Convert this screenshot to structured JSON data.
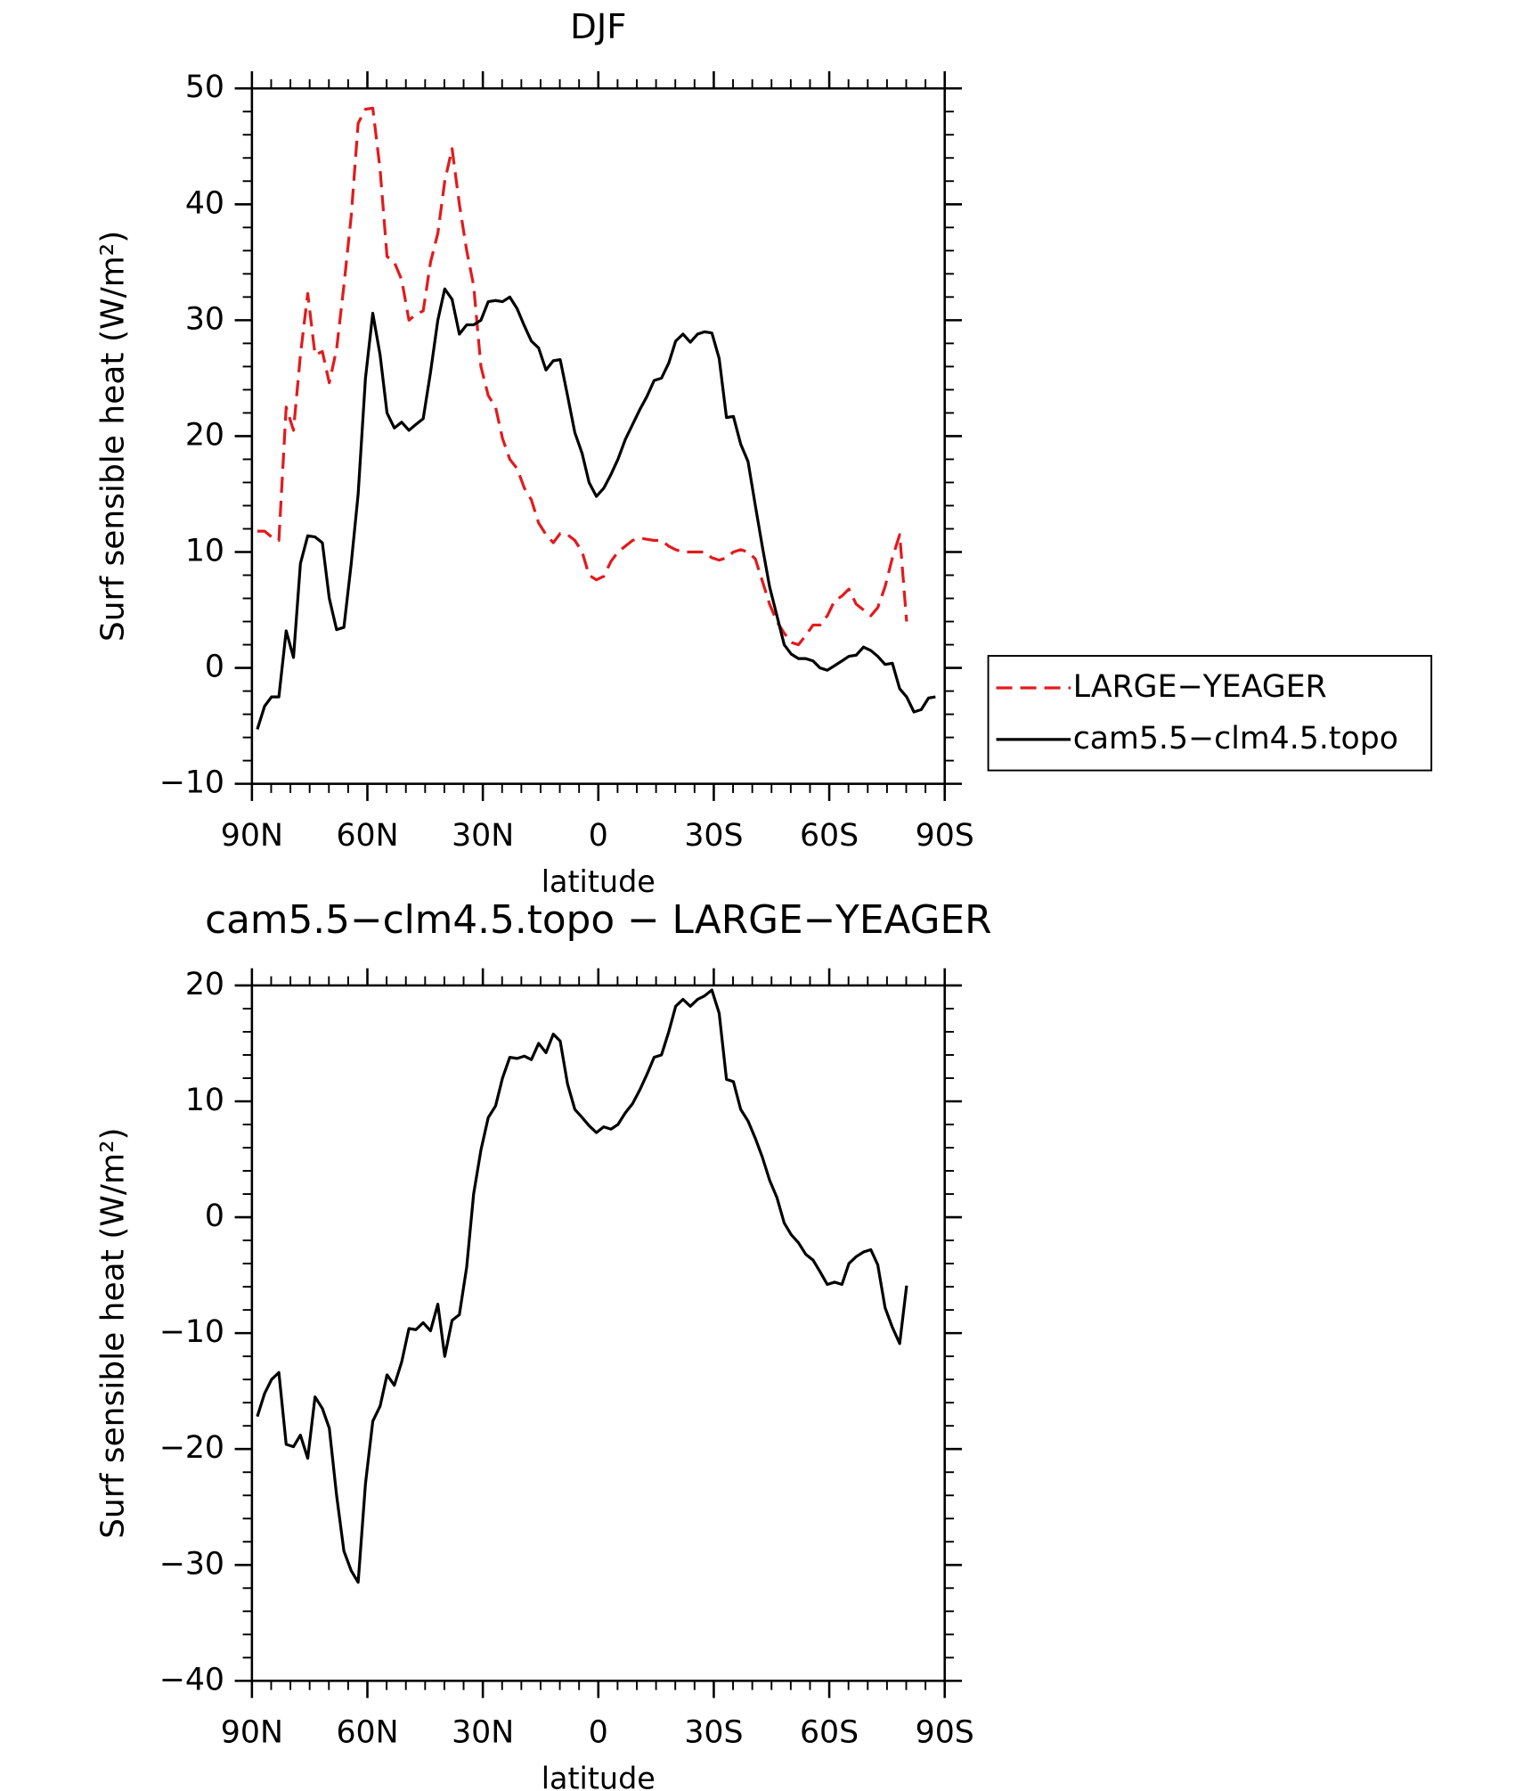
{
  "chart_data": [
    {
      "type": "line",
      "title": "DJF",
      "xlabel": "latitude",
      "ylabel": "Surf sensible heat (W/m²)",
      "x": [
        88.6,
        86.7,
        84.9,
        83.0,
        81.1,
        79.2,
        77.4,
        75.5,
        73.6,
        71.7,
        69.9,
        68.0,
        66.1,
        64.2,
        62.4,
        60.5,
        58.6,
        56.7,
        54.9,
        53.0,
        51.1,
        49.2,
        47.4,
        45.5,
        43.6,
        41.7,
        39.9,
        38.0,
        36.1,
        34.2,
        32.4,
        30.5,
        28.6,
        26.7,
        24.9,
        23.0,
        21.1,
        19.2,
        17.4,
        15.5,
        13.6,
        11.7,
        9.9,
        8.0,
        6.1,
        4.2,
        2.4,
        0.5,
        -1.4,
        -3.3,
        -5.1,
        -7.0,
        -8.9,
        -10.8,
        -12.6,
        -14.5,
        -16.4,
        -18.3,
        -20.1,
        -22.0,
        -23.9,
        -25.8,
        -27.6,
        -29.5,
        -31.4,
        -33.3,
        -35.1,
        -37.0,
        -38.9,
        -40.8,
        -42.6,
        -44.5,
        -46.4,
        -48.3,
        -50.1,
        -52.0,
        -53.9,
        -55.8,
        -57.6,
        -59.5,
        -61.4,
        -63.3,
        -65.1,
        -67.0,
        -68.9,
        -70.8,
        -72.6,
        -74.5,
        -76.4,
        -78.3,
        -80.1,
        -82.0,
        -83.9,
        -85.8,
        -87.6
      ],
      "series": [
        {
          "name": "LARGE−YEAGER",
          "color": "#e31a1c",
          "dash": true,
          "values": [
            11.8,
            11.8,
            11.3,
            11,
            22.5,
            20.5,
            27,
            32.3,
            27,
            27.3,
            24.6,
            27.5,
            33,
            39,
            47,
            48.2,
            48.3,
            43,
            35.5,
            35,
            33.5,
            30,
            30.5,
            30.8,
            35,
            37.5,
            42,
            44.8,
            40,
            36,
            33,
            26,
            23.5,
            22.5,
            19.8,
            18,
            17.2,
            15.5,
            14.5,
            12.5,
            11.5,
            10.8,
            11.6,
            11.5,
            11,
            10,
            8,
            7.6,
            7.9,
            9.2,
            10,
            10.5,
            11,
            11.2,
            11.1,
            11,
            11,
            10.5,
            10.2,
            10,
            10,
            10,
            10,
            9.5,
            9.3,
            9.5,
            10,
            10.2,
            10,
            9.4,
            7.5,
            5.5,
            4,
            3,
            2.2,
            2,
            2.8,
            3.7,
            3.7,
            4.5,
            5.8,
            6.2,
            6.8,
            5.5,
            5,
            4.5,
            5.2,
            7,
            9.5,
            11.5,
            4,
            null,
            null,
            null,
            null
          ]
        },
        {
          "name": "cam5.5−clm4.5.topo",
          "color": "#000000",
          "dash": false,
          "values": [
            -5.3,
            -3.3,
            -2.5,
            -2.5,
            3.2,
            0.9,
            9,
            11.4,
            11.3,
            10.8,
            6,
            3.3,
            3.5,
            9,
            15,
            25,
            30.6,
            27,
            22,
            20.7,
            21.2,
            20.5,
            21,
            21.5,
            25.5,
            30,
            32.7,
            31.8,
            28.8,
            29.6,
            29.6,
            30,
            31.6,
            31.7,
            31.6,
            32,
            31,
            29.5,
            28.2,
            27.6,
            25.7,
            26.5,
            26.6,
            23.5,
            20.3,
            18.5,
            16,
            14.8,
            15.5,
            16.7,
            18,
            19.7,
            21,
            22.3,
            23.4,
            24.8,
            25,
            26.3,
            28.2,
            28.8,
            28.1,
            28.8,
            29,
            28.9,
            26.7,
            21.6,
            21.7,
            19.3,
            17.8,
            14,
            10.5,
            7,
            4.5,
            2,
            1.2,
            0.8,
            0.8,
            0.6,
            0,
            -0.2,
            0.2,
            0.6,
            1,
            1.1,
            1.8,
            1.5,
            1,
            0.3,
            0.4,
            -1.8,
            -2.5,
            -3.8,
            -3.6,
            -2.6,
            -2.5
          ]
        }
      ],
      "xlim": [
        90,
        -90
      ],
      "xticks": [
        {
          "value": 90,
          "label": "90N"
        },
        {
          "value": 60,
          "label": "60N"
        },
        {
          "value": 30,
          "label": "30N"
        },
        0,
        {
          "value": -30,
          "label": "30S"
        },
        {
          "value": -60,
          "label": "60S"
        },
        {
          "value": -90,
          "label": "90S"
        }
      ],
      "ylim": [
        -10,
        50
      ],
      "yticks": [
        {
          "value": -10,
          "label": "−10"
        },
        0,
        10,
        20,
        30,
        40,
        50
      ],
      "x_minor_divisions": 6,
      "y_minor_divisions": 5,
      "legend": "right"
    },
    {
      "type": "line",
      "title": "cam5.5−clm4.5.topo − LARGE−YEAGER",
      "xlabel": "latitude",
      "ylabel": "Surf sensible heat (W/m²)",
      "x": [
        88.6,
        86.7,
        84.9,
        83.0,
        81.1,
        79.2,
        77.4,
        75.5,
        73.6,
        71.7,
        69.9,
        68.0,
        66.1,
        64.2,
        62.4,
        60.5,
        58.6,
        56.7,
        54.9,
        53.0,
        51.1,
        49.2,
        47.4,
        45.5,
        43.6,
        41.7,
        39.9,
        38.0,
        36.1,
        34.2,
        32.4,
        30.5,
        28.6,
        26.7,
        24.9,
        23.0,
        21.1,
        19.2,
        17.4,
        15.5,
        13.6,
        11.7,
        9.9,
        8.0,
        6.1,
        4.2,
        2.4,
        0.5,
        -1.4,
        -3.3,
        -5.1,
        -7.0,
        -8.9,
        -10.8,
        -12.6,
        -14.5,
        -16.4,
        -18.3,
        -20.1,
        -22.0,
        -23.9,
        -25.8,
        -27.6,
        -29.5,
        -31.4,
        -33.3,
        -35.1,
        -37.0,
        -38.9,
        -40.8,
        -42.6,
        -44.5,
        -46.4,
        -48.3,
        -50.1,
        -52.0,
        -53.9,
        -55.8,
        -57.6,
        -59.5,
        -61.4,
        -63.3,
        -65.1,
        -67.0,
        -68.9,
        -70.8,
        -72.6,
        -74.5,
        -76.4,
        -78.3,
        -80.1,
        -82.0,
        -83.9,
        -85.8,
        -87.6
      ],
      "series": [
        {
          "color": "#000000",
          "dash": false,
          "values": [
            -17.2,
            -15.2,
            -14,
            -13.4,
            -19.6,
            -19.8,
            -18.8,
            -20.8,
            -15.5,
            -16.5,
            -18.2,
            -24,
            -28.8,
            -30.5,
            -31.5,
            -23,
            -17.6,
            -16.3,
            -13.6,
            -14.5,
            -12.5,
            -9.6,
            -9.7,
            -9.1,
            -9.8,
            -7.5,
            -12,
            -8.9,
            -8.4,
            -4.3,
            2,
            5.8,
            8.6,
            9.6,
            12,
            13.8,
            13.7,
            13.9,
            13.6,
            15,
            14.2,
            15.8,
            15.2,
            11.5,
            9.3,
            8.6,
            7.9,
            7.3,
            7.8,
            7.6,
            8,
            9,
            9.8,
            11,
            12.3,
            13.8,
            14,
            16,
            18.2,
            18.8,
            18.2,
            18.8,
            19.1,
            19.6,
            17.6,
            11.9,
            11.7,
            9.3,
            8.3,
            6.8,
            5.2,
            3.2,
            1.7,
            -0.5,
            -1.5,
            -2.2,
            -3.2,
            -3.7,
            -4.7,
            -5.8,
            -5.6,
            -5.8,
            -4,
            -3.4,
            -3,
            -2.8,
            -4.1,
            -7.8,
            -9.5,
            -10.9,
            -5.9,
            null,
            null,
            null,
            null
          ]
        }
      ],
      "xlim": [
        90,
        -90
      ],
      "xticks": [
        {
          "value": 90,
          "label": "90N"
        },
        {
          "value": 60,
          "label": "60N"
        },
        {
          "value": 30,
          "label": "30N"
        },
        0,
        {
          "value": -30,
          "label": "30S"
        },
        {
          "value": -60,
          "label": "60S"
        },
        {
          "value": -90,
          "label": "90S"
        }
      ],
      "ylim": [
        -40,
        20
      ],
      "yticks": [
        {
          "value": -40,
          "label": "−40"
        },
        {
          "value": -30,
          "label": "−30"
        },
        {
          "value": -20,
          "label": "−20"
        },
        {
          "value": -10,
          "label": "−10"
        },
        0,
        10,
        20
      ],
      "x_minor_divisions": 6,
      "y_minor_divisions": 5
    }
  ]
}
